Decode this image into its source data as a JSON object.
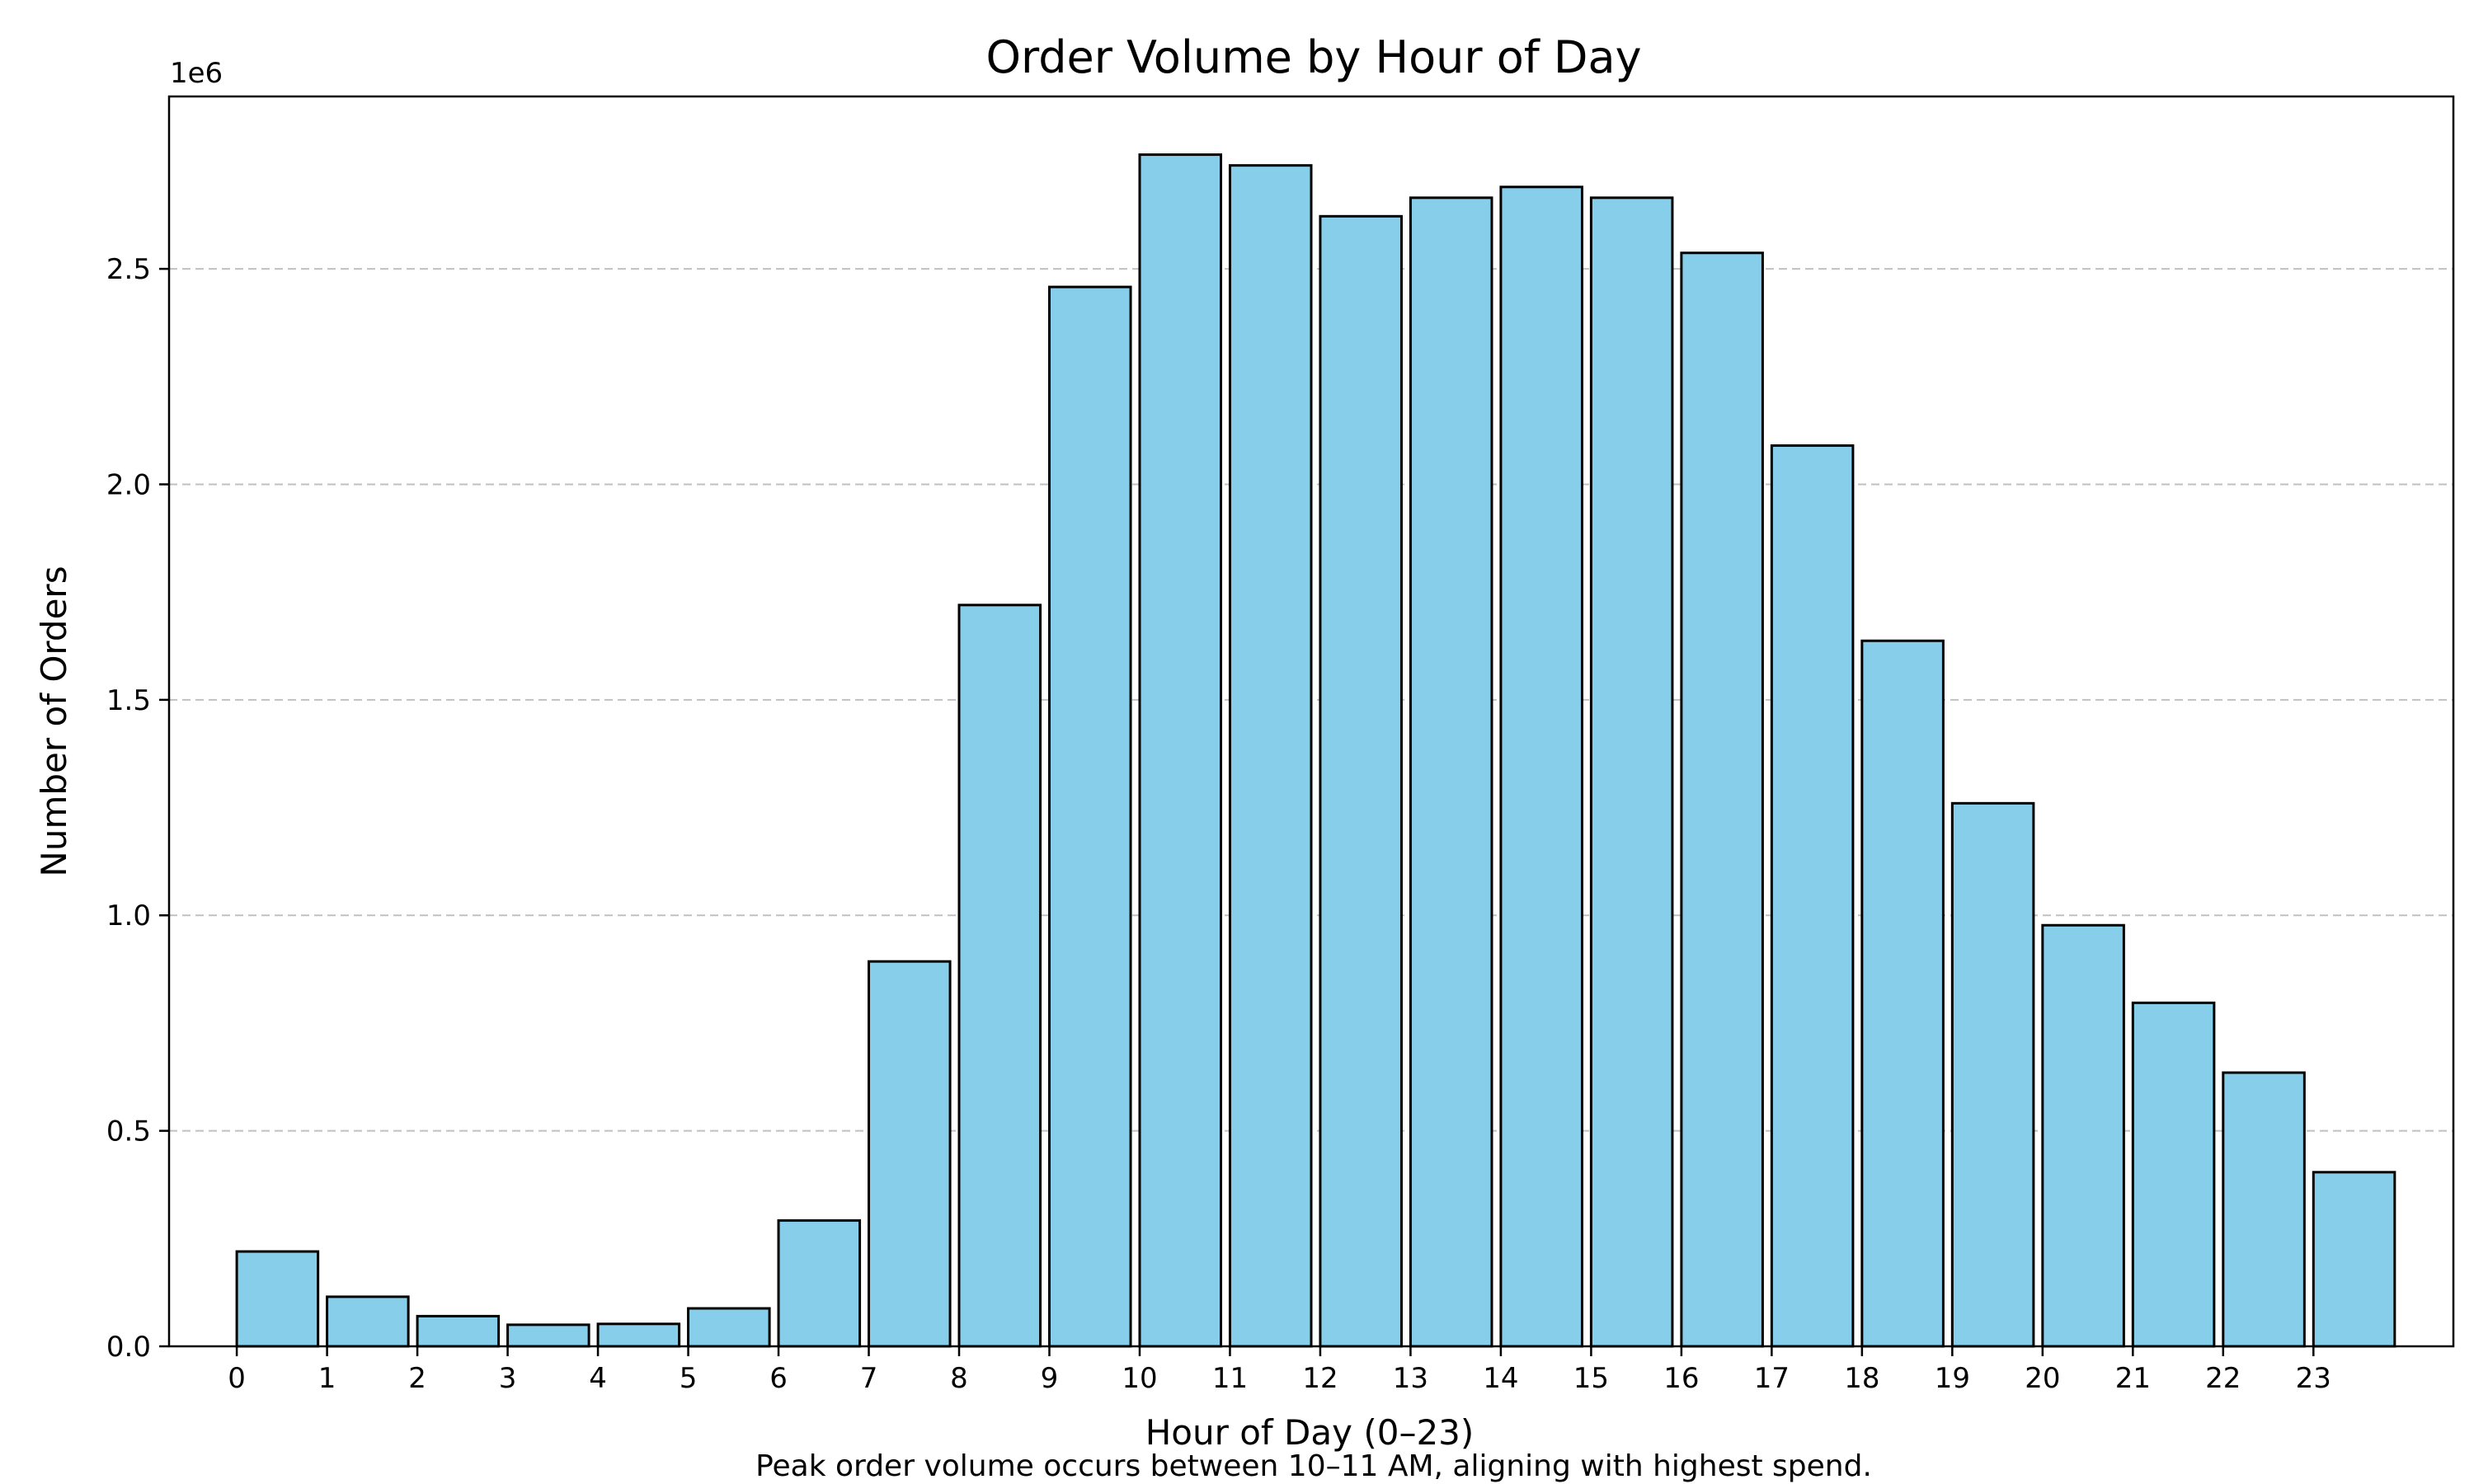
{
  "chart_data": {
    "type": "bar",
    "title": "Order Volume by Hour of Day",
    "xlabel": "Hour of Day (0–23)",
    "ylabel": "Number of Orders",
    "y_offset_label": "1e6",
    "caption": "Peak order volume occurs between 10–11 AM, aligning with highest spend.",
    "categories": [
      "0",
      "1",
      "2",
      "3",
      "4",
      "5",
      "6",
      "7",
      "8",
      "9",
      "10",
      "11",
      "12",
      "13",
      "14",
      "15",
      "16",
      "17",
      "18",
      "19",
      "20",
      "21",
      "22",
      "23"
    ],
    "values": [
      220000,
      115000,
      70000,
      50000,
      52000,
      88000,
      292000,
      893000,
      1720000,
      2458000,
      2765000,
      2740000,
      2622000,
      2665000,
      2690000,
      2665000,
      2537000,
      2090000,
      1637000,
      1260000,
      977000,
      797000,
      635000,
      404000
    ],
    "ylim": [
      0,
      2900000
    ],
    "yticks": [
      0,
      500000,
      1000000,
      1500000,
      2000000,
      2500000
    ],
    "ytick_labels": [
      "0.0",
      "0.5",
      "1.0",
      "1.5",
      "2.0",
      "2.5"
    ],
    "xlim": [
      -1.2,
      24.1
    ],
    "bar_width": 0.9,
    "grid": "y-dashed",
    "bar_color": "#87CEEB",
    "edge_color": "#000000"
  }
}
